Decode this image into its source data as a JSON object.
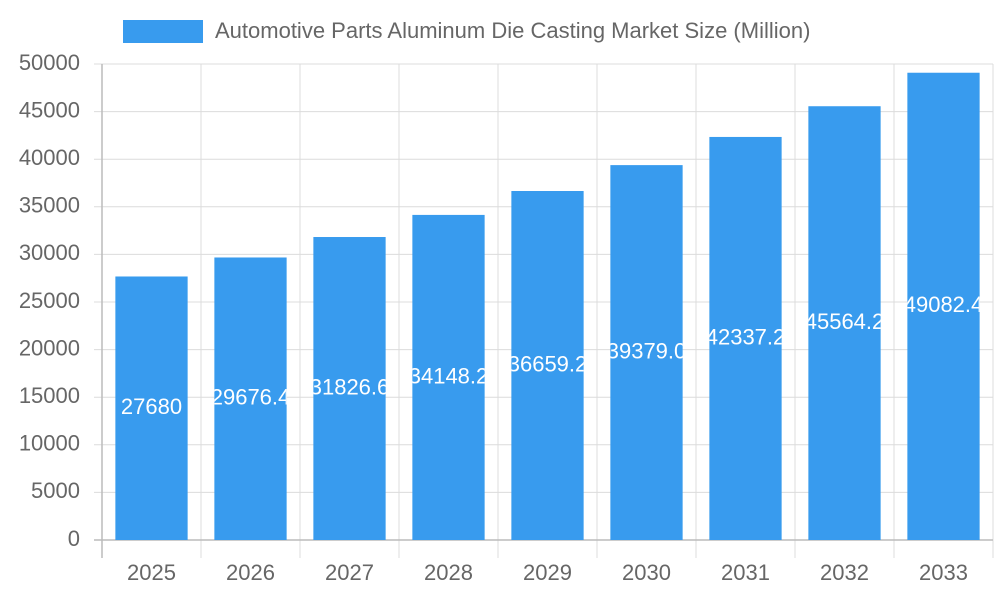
{
  "chart_data": {
    "type": "bar",
    "series": [
      {
        "name": "Automotive Parts Aluminum Die Casting Market Size (Million)",
        "color": "#389bee",
        "values": [
          27680,
          29676.4,
          31826.6,
          34148.2,
          36659.2,
          39379.0,
          42337.2,
          45564.2,
          49082.4
        ],
        "value_labels": [
          "27680",
          "29676.4",
          "31826.6",
          "34148.2",
          "36659.2",
          "39379.0",
          "42337.2",
          "45564.2",
          "49082.4"
        ]
      }
    ],
    "categories": [
      "2025",
      "2026",
      "2027",
      "2028",
      "2029",
      "2030",
      "2031",
      "2032",
      "2033"
    ],
    "ylim": [
      0,
      50000
    ],
    "yticks": [
      0,
      5000,
      10000,
      15000,
      20000,
      25000,
      30000,
      35000,
      40000,
      45000,
      50000
    ],
    "grid": true,
    "legend": "top"
  }
}
